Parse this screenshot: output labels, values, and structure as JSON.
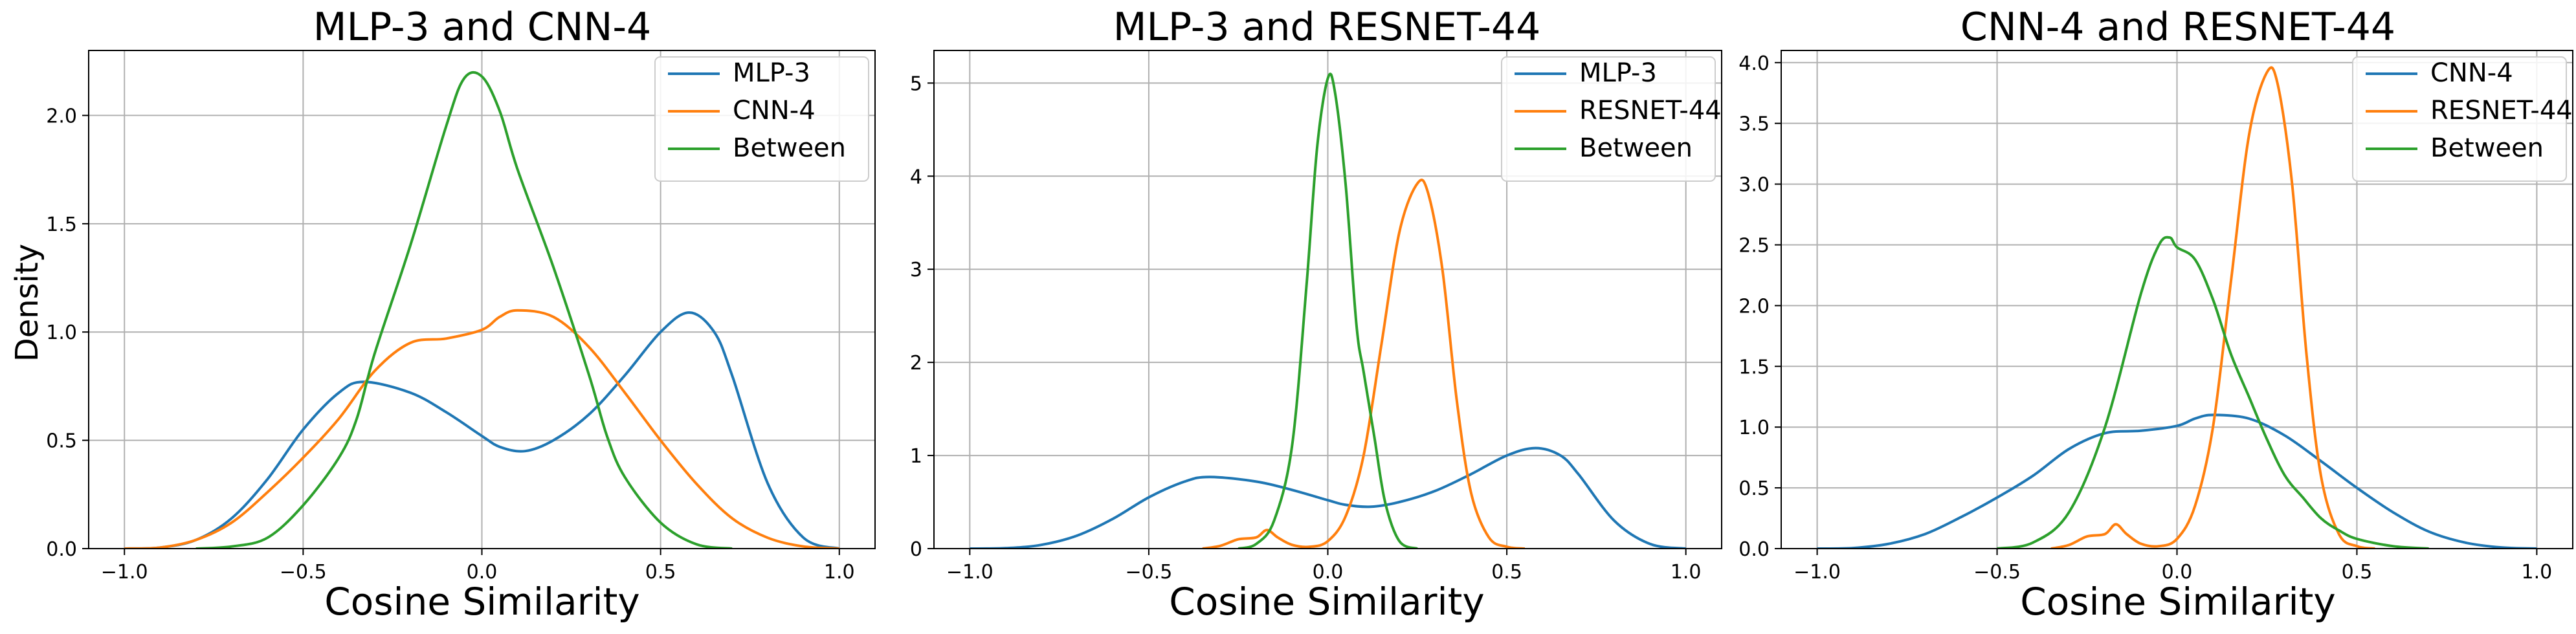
{
  "colors": {
    "blue": "#1f77b4",
    "orange": "#ff7f0e",
    "green": "#2ca02c",
    "grid": "#b0b0b0"
  },
  "chart_data": [
    {
      "type": "line",
      "title": "MLP-3 and CNN-4",
      "xlabel": "Cosine Similarity",
      "ylabel": "Density",
      "xlim": [
        -1.1,
        1.1
      ],
      "ylim": [
        0,
        2.3
      ],
      "xticks": [
        -1.0,
        -0.5,
        0.0,
        0.5,
        1.0
      ],
      "xtick_labels": [
        "−1.0",
        "−0.5",
        "0.0",
        "0.5",
        "1.0"
      ],
      "yticks": [
        0,
        0.5,
        1.0,
        1.5,
        2.0
      ],
      "ytick_labels": [
        "0.0",
        "0.5",
        "1.0",
        "1.5",
        "2.0"
      ],
      "grid": true,
      "legend": "top-right",
      "series": [
        {
          "name": "MLP-3",
          "color": "#1f77b4",
          "x": [
            -1.0,
            -0.9,
            -0.8,
            -0.7,
            -0.6,
            -0.5,
            -0.4,
            -0.33,
            -0.2,
            -0.1,
            0.0,
            0.05,
            0.12,
            0.2,
            0.3,
            0.4,
            0.5,
            0.58,
            0.65,
            0.7,
            0.8,
            0.9,
            1.0
          ],
          "y": [
            0.0,
            0.005,
            0.04,
            0.14,
            0.32,
            0.55,
            0.72,
            0.77,
            0.72,
            0.63,
            0.52,
            0.47,
            0.45,
            0.5,
            0.62,
            0.8,
            1.0,
            1.09,
            1.0,
            0.8,
            0.3,
            0.05,
            0.0
          ]
        },
        {
          "name": "CNN-4",
          "color": "#ff7f0e",
          "x": [
            -1.0,
            -0.9,
            -0.8,
            -0.7,
            -0.6,
            -0.5,
            -0.4,
            -0.3,
            -0.2,
            -0.1,
            0.0,
            0.05,
            0.1,
            0.2,
            0.3,
            0.4,
            0.5,
            0.6,
            0.7,
            0.8,
            0.9,
            1.0
          ],
          "y": [
            0.0,
            0.005,
            0.04,
            0.12,
            0.26,
            0.42,
            0.6,
            0.82,
            0.95,
            0.97,
            1.01,
            1.07,
            1.1,
            1.07,
            0.93,
            0.72,
            0.5,
            0.3,
            0.14,
            0.05,
            0.01,
            0.0
          ]
        },
        {
          "name": "Between",
          "color": "#2ca02c",
          "x": [
            -0.8,
            -0.7,
            -0.6,
            -0.5,
            -0.4,
            -0.35,
            -0.3,
            -0.2,
            -0.1,
            -0.05,
            0.0,
            0.05,
            0.1,
            0.2,
            0.3,
            0.35,
            0.4,
            0.5,
            0.6,
            0.7
          ],
          "y": [
            0.0,
            0.01,
            0.05,
            0.2,
            0.42,
            0.6,
            0.9,
            1.4,
            1.95,
            2.17,
            2.18,
            2.02,
            1.75,
            1.3,
            0.8,
            0.52,
            0.33,
            0.12,
            0.02,
            0.0
          ]
        }
      ]
    },
    {
      "type": "line",
      "title": "MLP-3 and RESNET-44",
      "xlabel": "Cosine Similarity",
      "ylabel": "",
      "xlim": [
        -1.1,
        1.1
      ],
      "ylim": [
        0,
        5.35
      ],
      "xticks": [
        -1.0,
        -0.5,
        0.0,
        0.5,
        1.0
      ],
      "xtick_labels": [
        "−1.0",
        "−0.5",
        "0.0",
        "0.5",
        "1.0"
      ],
      "yticks": [
        0,
        1,
        2,
        3,
        4,
        5
      ],
      "ytick_labels": [
        "0",
        "1",
        "2",
        "3",
        "4",
        "5"
      ],
      "grid": true,
      "legend": "top-right",
      "series": [
        {
          "name": "MLP-3",
          "color": "#1f77b4",
          "x": [
            -1.0,
            -0.9,
            -0.8,
            -0.7,
            -0.6,
            -0.5,
            -0.4,
            -0.33,
            -0.2,
            -0.1,
            0.0,
            0.05,
            0.12,
            0.2,
            0.3,
            0.4,
            0.5,
            0.58,
            0.65,
            0.7,
            0.8,
            0.9,
            1.0
          ],
          "y": [
            0.0,
            0.005,
            0.04,
            0.14,
            0.32,
            0.55,
            0.72,
            0.77,
            0.72,
            0.63,
            0.52,
            0.47,
            0.45,
            0.5,
            0.62,
            0.8,
            1.0,
            1.08,
            1.0,
            0.8,
            0.3,
            0.05,
            0.0
          ]
        },
        {
          "name": "RESNET-44",
          "color": "#ff7f0e",
          "x": [
            -0.35,
            -0.3,
            -0.25,
            -0.2,
            -0.17,
            -0.14,
            -0.1,
            -0.05,
            0.0,
            0.05,
            0.1,
            0.15,
            0.2,
            0.25,
            0.28,
            0.32,
            0.36,
            0.4,
            0.45,
            0.5,
            0.55
          ],
          "y": [
            0.0,
            0.03,
            0.1,
            0.12,
            0.2,
            0.12,
            0.04,
            0.02,
            0.08,
            0.35,
            1.0,
            2.2,
            3.4,
            3.92,
            3.82,
            3.0,
            1.6,
            0.6,
            0.12,
            0.02,
            0.0
          ]
        },
        {
          "name": "Between",
          "color": "#2ca02c",
          "x": [
            -0.25,
            -0.2,
            -0.15,
            -0.1,
            -0.06,
            -0.03,
            0.0,
            0.02,
            0.05,
            0.08,
            0.1,
            0.13,
            0.16,
            0.2,
            0.25
          ],
          "y": [
            0.0,
            0.05,
            0.3,
            1.1,
            2.8,
            4.3,
            5.05,
            4.9,
            3.9,
            2.4,
            1.9,
            1.2,
            0.5,
            0.08,
            0.0
          ]
        }
      ]
    },
    {
      "type": "line",
      "title": "CNN-4 and RESNET-44",
      "xlabel": "Cosine Similarity",
      "ylabel": "",
      "xlim": [
        -1.1,
        1.1
      ],
      "ylim": [
        0,
        4.1
      ],
      "xticks": [
        -1.0,
        -0.5,
        0.0,
        0.5,
        1.0
      ],
      "xtick_labels": [
        "−1.0",
        "−0.5",
        "0.0",
        "0.5",
        "1.0"
      ],
      "yticks": [
        0,
        0.5,
        1.0,
        1.5,
        2.0,
        2.5,
        3.0,
        3.5,
        4.0
      ],
      "ytick_labels": [
        "0.0",
        "0.5",
        "1.0",
        "1.5",
        "2.0",
        "2.5",
        "3.0",
        "3.5",
        "4.0"
      ],
      "grid": true,
      "legend": "top-right",
      "series": [
        {
          "name": "CNN-4",
          "color": "#1f77b4",
          "x": [
            -1.0,
            -0.9,
            -0.8,
            -0.7,
            -0.6,
            -0.5,
            -0.4,
            -0.3,
            -0.2,
            -0.1,
            0.0,
            0.05,
            0.1,
            0.2,
            0.3,
            0.4,
            0.5,
            0.6,
            0.7,
            0.8,
            0.9,
            1.0
          ],
          "y": [
            0.0,
            0.005,
            0.04,
            0.12,
            0.26,
            0.42,
            0.6,
            0.82,
            0.95,
            0.97,
            1.01,
            1.07,
            1.1,
            1.07,
            0.93,
            0.72,
            0.5,
            0.3,
            0.14,
            0.05,
            0.01,
            0.0
          ]
        },
        {
          "name": "RESNET-44",
          "color": "#ff7f0e",
          "x": [
            -0.35,
            -0.3,
            -0.25,
            -0.2,
            -0.17,
            -0.14,
            -0.1,
            -0.05,
            0.0,
            0.05,
            0.1,
            0.15,
            0.2,
            0.25,
            0.28,
            0.32,
            0.36,
            0.4,
            0.45,
            0.5,
            0.55
          ],
          "y": [
            0.0,
            0.03,
            0.1,
            0.12,
            0.2,
            0.12,
            0.04,
            0.02,
            0.08,
            0.35,
            1.0,
            2.2,
            3.4,
            3.92,
            3.82,
            3.0,
            1.6,
            0.6,
            0.12,
            0.02,
            0.0
          ]
        },
        {
          "name": "Between",
          "color": "#2ca02c",
          "x": [
            -0.5,
            -0.4,
            -0.3,
            -0.2,
            -0.1,
            -0.05,
            -0.02,
            0.0,
            0.05,
            0.1,
            0.15,
            0.2,
            0.25,
            0.3,
            0.35,
            0.4,
            0.45,
            0.5,
            0.6,
            0.7
          ],
          "y": [
            0.0,
            0.05,
            0.3,
            1.0,
            2.1,
            2.5,
            2.56,
            2.48,
            2.38,
            2.05,
            1.6,
            1.25,
            0.9,
            0.6,
            0.42,
            0.25,
            0.15,
            0.08,
            0.02,
            0.0
          ]
        }
      ]
    }
  ]
}
